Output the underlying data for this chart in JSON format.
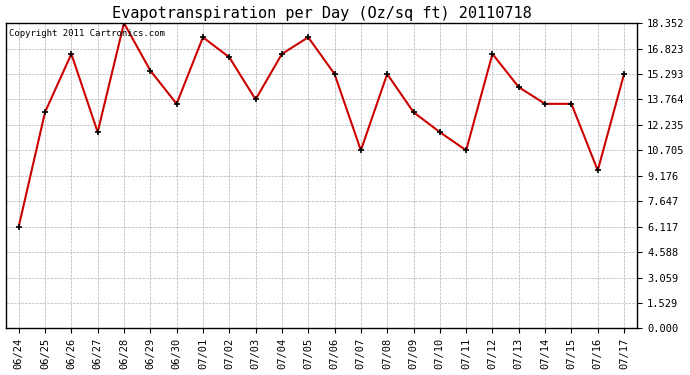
{
  "title": "Evapotranspiration per Day (Oz/sq ft) 20110718",
  "copyright": "Copyright 2011 Cartronics.com",
  "x_labels": [
    "06/24",
    "06/25",
    "06/26",
    "06/27",
    "06/28",
    "06/29",
    "06/30",
    "07/01",
    "07/02",
    "07/03",
    "07/04",
    "07/05",
    "07/06",
    "07/07",
    "07/08",
    "07/09",
    "07/10",
    "07/11",
    "07/12",
    "07/13",
    "07/14",
    "07/15",
    "07/16",
    "07/17"
  ],
  "y_values": [
    6.117,
    13.0,
    16.5,
    11.8,
    18.352,
    15.5,
    13.5,
    17.5,
    16.3,
    13.764,
    16.5,
    17.5,
    15.293,
    10.705,
    15.293,
    13.0,
    11.8,
    10.705,
    16.5,
    14.5,
    13.5,
    13.5,
    9.5,
    15.293
  ],
  "y_ticks": [
    0.0,
    1.529,
    3.059,
    4.588,
    6.117,
    7.647,
    9.176,
    10.705,
    12.235,
    13.764,
    15.293,
    16.823,
    18.352
  ],
  "y_min": 0.0,
  "y_max": 18.352,
  "line_color": "#cc0000",
  "marker_color": "#000000",
  "bg_color": "#ffffff",
  "grid_color": "#aaaaaa",
  "title_fontsize": 11,
  "copyright_fontsize": 6.5,
  "tick_fontsize": 7.5
}
